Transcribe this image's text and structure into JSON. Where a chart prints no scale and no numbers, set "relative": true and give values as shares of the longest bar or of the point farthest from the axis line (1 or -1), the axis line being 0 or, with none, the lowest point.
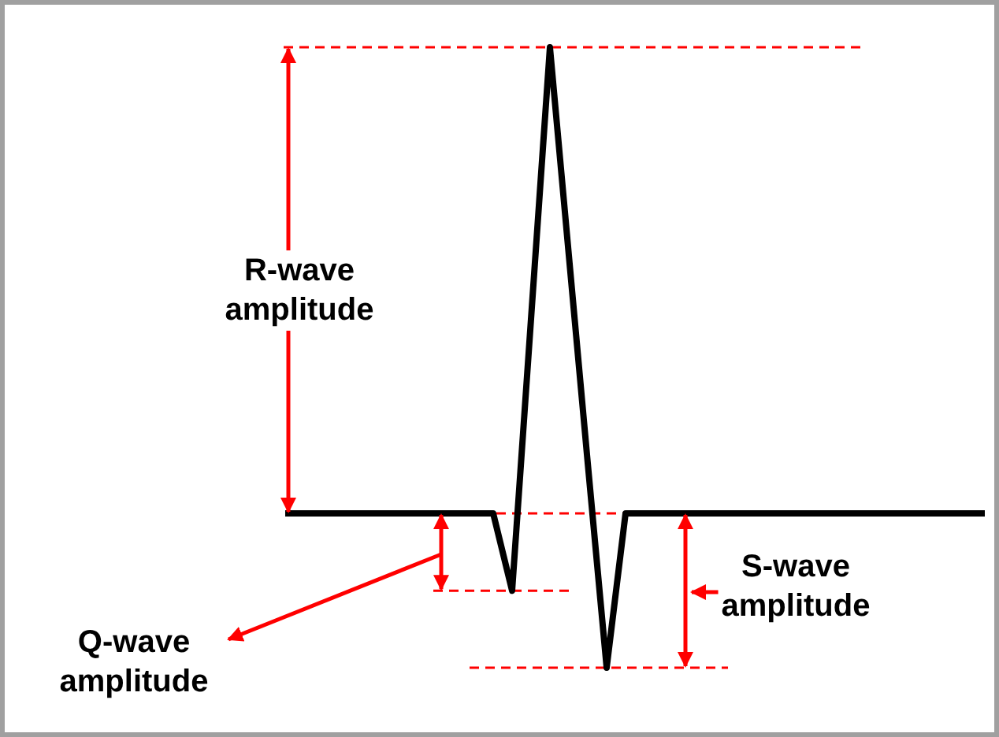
{
  "chart_data": {
    "type": "line",
    "relative": true,
    "categories": [
      null,
      null,
      null,
      null,
      null,
      null,
      null,
      null,
      null,
      null,
      null,
      null,
      null,
      null,
      null,
      null,
      null,
      null,
      null,
      null,
      null,
      null,
      null,
      null,
      null,
      null,
      null,
      null,
      null,
      null,
      null,
      null,
      null,
      null,
      null,
      null,
      null,
      null
    ],
    "series": [
      {
        "color": "#000000",
        "values": [
          0,
          0,
          0,
          0,
          0,
          0,
          0,
          0,
          0,
          0,
          0,
          0,
          -0.166,
          0.417,
          1,
          0.554,
          0.108,
          -0.331,
          0,
          0,
          0,
          0,
          0,
          0,
          0,
          0,
          0,
          0,
          0,
          0,
          0,
          0,
          0,
          0,
          0,
          0,
          0,
          0
        ]
      }
    ],
    "ref_lines": [
      {
        "axis": "y",
        "value": 1,
        "color": "#ff0000",
        "line_style": "dashed"
      },
      {
        "axis": "y",
        "value": 0,
        "color": "#ff0000",
        "line_style": "dashed"
      },
      {
        "axis": "y",
        "value": -0.166,
        "color": "#ff0000",
        "line_style": "dashed"
      },
      {
        "axis": "y",
        "value": -0.331,
        "color": "#ff0000",
        "line_style": "dashed"
      }
    ],
    "annotations": [
      "R-wave amplitude",
      "Q-wave amplitude",
      "S-wave amplitude"
    ],
    "marker": "none",
    "line_style": "solid",
    "tick_labels": false
  }
}
